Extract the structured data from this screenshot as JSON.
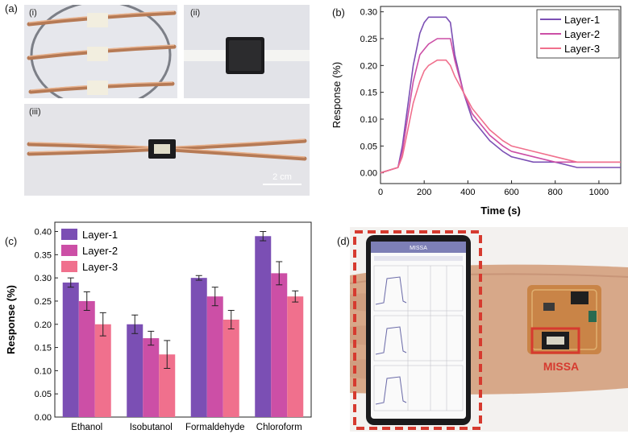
{
  "panels": {
    "a": {
      "label": "(a)",
      "sub_labels": [
        "(i)",
        "(ii)",
        "(iii)"
      ],
      "scale_bar": "2 cm"
    },
    "b": {
      "label": "(b)"
    },
    "c": {
      "label": "(c)"
    },
    "d": {
      "label": "(d)",
      "phone_title": "MISSA",
      "device_label": "MISSA"
    }
  },
  "colors": {
    "layer1": "#7b4fb4",
    "layer2": "#cc4fa6",
    "layer3": "#f0708d",
    "copper": "#c98b64",
    "red_box": "#d63a2f"
  },
  "chart_data": [
    {
      "type": "line",
      "xlabel": "Time (s)",
      "ylabel": "Response (%)",
      "xlim": [
        0,
        1100
      ],
      "ylim": [
        -0.02,
        0.31
      ],
      "x_ticks": [
        0,
        200,
        400,
        600,
        800,
        1000
      ],
      "y_ticks": [
        0.0,
        0.05,
        0.1,
        0.15,
        0.2,
        0.25,
        0.3
      ],
      "legend": "top-right",
      "series": [
        {
          "name": "Layer-1",
          "x": [
            0,
            80,
            100,
            150,
            180,
            200,
            220,
            260,
            300,
            320,
            340,
            380,
            420,
            460,
            500,
            560,
            600,
            700,
            800,
            900,
            1000,
            1100
          ],
          "y": [
            0.0,
            0.01,
            0.05,
            0.2,
            0.26,
            0.28,
            0.29,
            0.29,
            0.29,
            0.28,
            0.22,
            0.15,
            0.1,
            0.08,
            0.06,
            0.04,
            0.03,
            0.02,
            0.02,
            0.01,
            0.01,
            0.01
          ]
        },
        {
          "name": "Layer-2",
          "x": [
            0,
            80,
            100,
            150,
            180,
            200,
            220,
            260,
            300,
            320,
            340,
            380,
            420,
            460,
            500,
            560,
            600,
            700,
            800,
            900,
            1000,
            1100
          ],
          "y": [
            0.0,
            0.01,
            0.04,
            0.17,
            0.22,
            0.23,
            0.24,
            0.25,
            0.25,
            0.25,
            0.21,
            0.15,
            0.11,
            0.09,
            0.07,
            0.05,
            0.04,
            0.03,
            0.02,
            0.02,
            0.02,
            0.02
          ]
        },
        {
          "name": "Layer-3",
          "x": [
            0,
            80,
            100,
            150,
            180,
            200,
            220,
            260,
            300,
            320,
            340,
            380,
            420,
            460,
            500,
            560,
            600,
            700,
            800,
            900,
            1000,
            1100
          ],
          "y": [
            0.0,
            0.01,
            0.03,
            0.13,
            0.17,
            0.19,
            0.2,
            0.21,
            0.21,
            0.2,
            0.18,
            0.15,
            0.12,
            0.1,
            0.08,
            0.06,
            0.05,
            0.04,
            0.03,
            0.02,
            0.02,
            0.02
          ]
        }
      ]
    },
    {
      "type": "bar",
      "xlabel": "",
      "ylabel": "Response (%)",
      "ylim": [
        0,
        0.42
      ],
      "y_ticks": [
        0.0,
        0.05,
        0.1,
        0.15,
        0.2,
        0.25,
        0.3,
        0.35,
        0.4
      ],
      "legend": "top-left",
      "categories": [
        "Ethanol",
        "Isobutanol",
        "Formaldehyde",
        "Chloroform"
      ],
      "series": [
        {
          "name": "Layer-1",
          "values": [
            0.29,
            0.2,
            0.3,
            0.39
          ],
          "errors": [
            0.01,
            0.02,
            0.005,
            0.01
          ]
        },
        {
          "name": "Layer-2",
          "values": [
            0.25,
            0.17,
            0.26,
            0.31
          ],
          "errors": [
            0.02,
            0.015,
            0.02,
            0.025
          ]
        },
        {
          "name": "Layer-3",
          "values": [
            0.2,
            0.135,
            0.21,
            0.26
          ],
          "errors": [
            0.025,
            0.03,
            0.02,
            0.012
          ]
        }
      ]
    }
  ]
}
